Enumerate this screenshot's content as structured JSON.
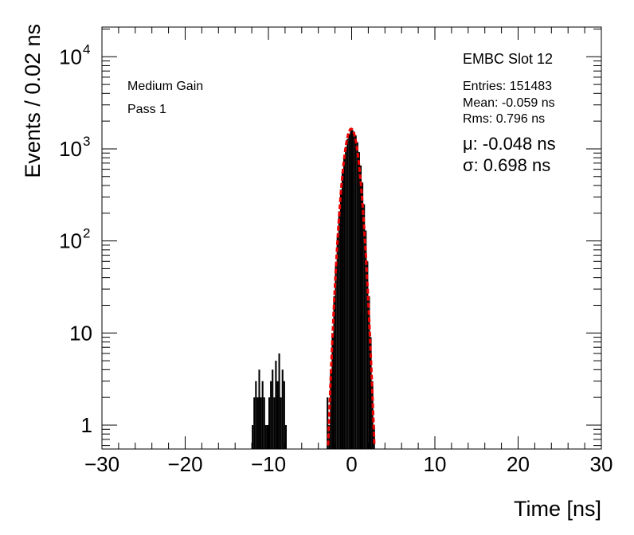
{
  "chart_data": {
    "type": "histogram",
    "title": "",
    "xlabel": "Time [ns]",
    "ylabel": "Events / 0.02 ns",
    "xlim": [
      -30,
      30
    ],
    "ylim": [
      0.55,
      21000
    ],
    "yscale": "log",
    "grid": false,
    "x_ticks": [
      -30,
      -20,
      -10,
      0,
      10,
      20,
      30
    ],
    "x_tick_labels": [
      "−30",
      "−20",
      "−10",
      "0",
      "10",
      "20",
      "30"
    ],
    "y_ticks": [
      1,
      10,
      100,
      1000,
      10000
    ],
    "y_tick_labels": [
      {
        "base": "1",
        "exp": ""
      },
      {
        "base": "10",
        "exp": ""
      },
      {
        "base": "10",
        "exp": "2"
      },
      {
        "base": "10",
        "exp": "3"
      },
      {
        "base": "10",
        "exp": "4"
      }
    ],
    "labels": {
      "gain": "Medium Gain",
      "pass": "Pass 1",
      "slot": "EMBC Slot 12",
      "entries": "Entries: 151483",
      "mean": "Mean: -0.059 ns",
      "rms": "Rms: 0.796 ns",
      "mu": "μ: -0.048 ns",
      "sigma": "σ: 0.698 ns"
    },
    "series": [
      {
        "kind": "histogram",
        "color": "#000000",
        "bins": [
          [
            -11.9,
            1
          ],
          [
            -11.7,
            2
          ],
          [
            -11.5,
            3
          ],
          [
            -11.3,
            2
          ],
          [
            -11.1,
            4
          ],
          [
            -10.9,
            2
          ],
          [
            -10.7,
            3
          ],
          [
            -10.5,
            2
          ],
          [
            -10.3,
            1
          ],
          [
            -10.1,
            1
          ],
          [
            -9.9,
            2
          ],
          [
            -9.7,
            3
          ],
          [
            -9.5,
            4
          ],
          [
            -9.3,
            2
          ],
          [
            -9.1,
            5
          ],
          [
            -8.9,
            3
          ],
          [
            -8.7,
            6
          ],
          [
            -8.5,
            2
          ],
          [
            -8.3,
            4
          ],
          [
            -8.1,
            3
          ],
          [
            -7.9,
            1
          ],
          [
            -2.9,
            2
          ],
          [
            -2.7,
            1
          ],
          [
            -2.5,
            4
          ],
          [
            -2.3,
            10
          ],
          [
            -2.1,
            25
          ],
          [
            -1.9,
            55
          ],
          [
            -1.7,
            110
          ],
          [
            -1.5,
            210
          ],
          [
            -1.3,
            360
          ],
          [
            -1.1,
            560
          ],
          [
            -0.9,
            800
          ],
          [
            -0.7,
            1050
          ],
          [
            -0.5,
            1280
          ],
          [
            -0.3,
            1450
          ],
          [
            -0.1,
            1580
          ],
          [
            0.1,
            1600
          ],
          [
            0.3,
            1540
          ],
          [
            0.5,
            1400
          ],
          [
            0.7,
            1180
          ],
          [
            0.9,
            920
          ],
          [
            1.1,
            660
          ],
          [
            1.3,
            430
          ],
          [
            1.5,
            250
          ],
          [
            1.7,
            130
          ],
          [
            1.9,
            60
          ],
          [
            2.1,
            25
          ],
          [
            2.3,
            9
          ],
          [
            2.5,
            3
          ],
          [
            2.7,
            1
          ]
        ]
      },
      {
        "kind": "gaussian-fit",
        "color": "#ee0000",
        "mu": -0.048,
        "sigma": 0.698,
        "amplitude": 1650,
        "x_range": [
          -3,
          3
        ]
      }
    ]
  }
}
